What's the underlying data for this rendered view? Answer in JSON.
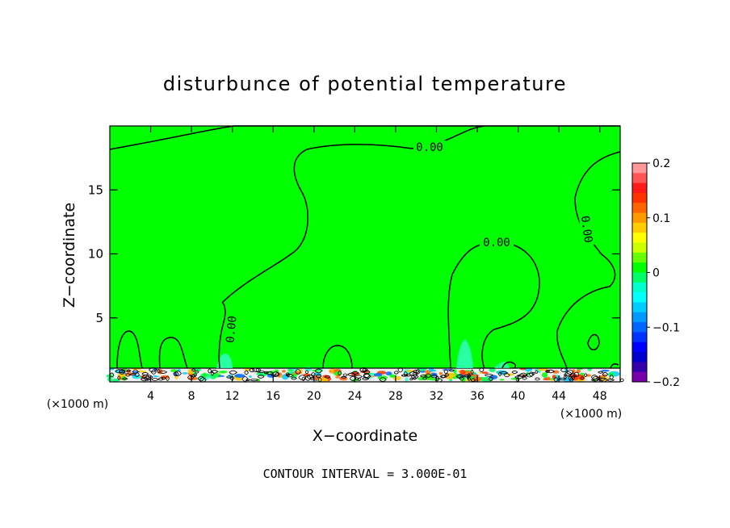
{
  "chart_data": {
    "type": "heatmap",
    "title": "disturbunce of potential temperature",
    "xlabel": "X−coordinate",
    "ylabel": "Z−coordinate",
    "x_unit_left": "(×1000 m)",
    "x_unit_right": "(×1000 m)",
    "xlim": [
      0,
      50
    ],
    "ylim": [
      0,
      20
    ],
    "x_ticks": [
      4,
      8,
      12,
      16,
      20,
      24,
      28,
      32,
      36,
      40,
      44,
      48
    ],
    "y_ticks": [
      5,
      10,
      15
    ],
    "colorbar": {
      "range": [
        -0.2,
        0.2
      ],
      "tick_values": [
        0.2,
        0.1,
        0,
        -0.1,
        -0.2
      ],
      "tick_labels": [
        "0.2",
        "0.1",
        "0",
        "−0.1",
        "−0.2"
      ],
      "colors": [
        "#ff9999",
        "#ff5555",
        "#ff1a1a",
        "#ff3300",
        "#ff6600",
        "#ff9900",
        "#ffcc00",
        "#ffff00",
        "#ccff00",
        "#66ff00",
        "#00ff00",
        "#00ff66",
        "#00ffcc",
        "#00ffff",
        "#00ccff",
        "#0099ff",
        "#0066ff",
        "#0033ff",
        "#0000ff",
        "#0000cc",
        "#3300aa",
        "#7700aa"
      ]
    },
    "field_dominant_value": 0.0,
    "contour_labels": [
      "0.00",
      "0.00",
      "0.00",
      "0.00"
    ],
    "contour_interval_text": "CONTOUR INTERVAL = 3.000E-01",
    "grid": false,
    "colorbar_position": "right"
  },
  "colors": {
    "field": "#00ff00",
    "positive_noise": "#ff4400",
    "negative_noise": "#0033ff",
    "cyan_patch": "#33ffcc"
  }
}
